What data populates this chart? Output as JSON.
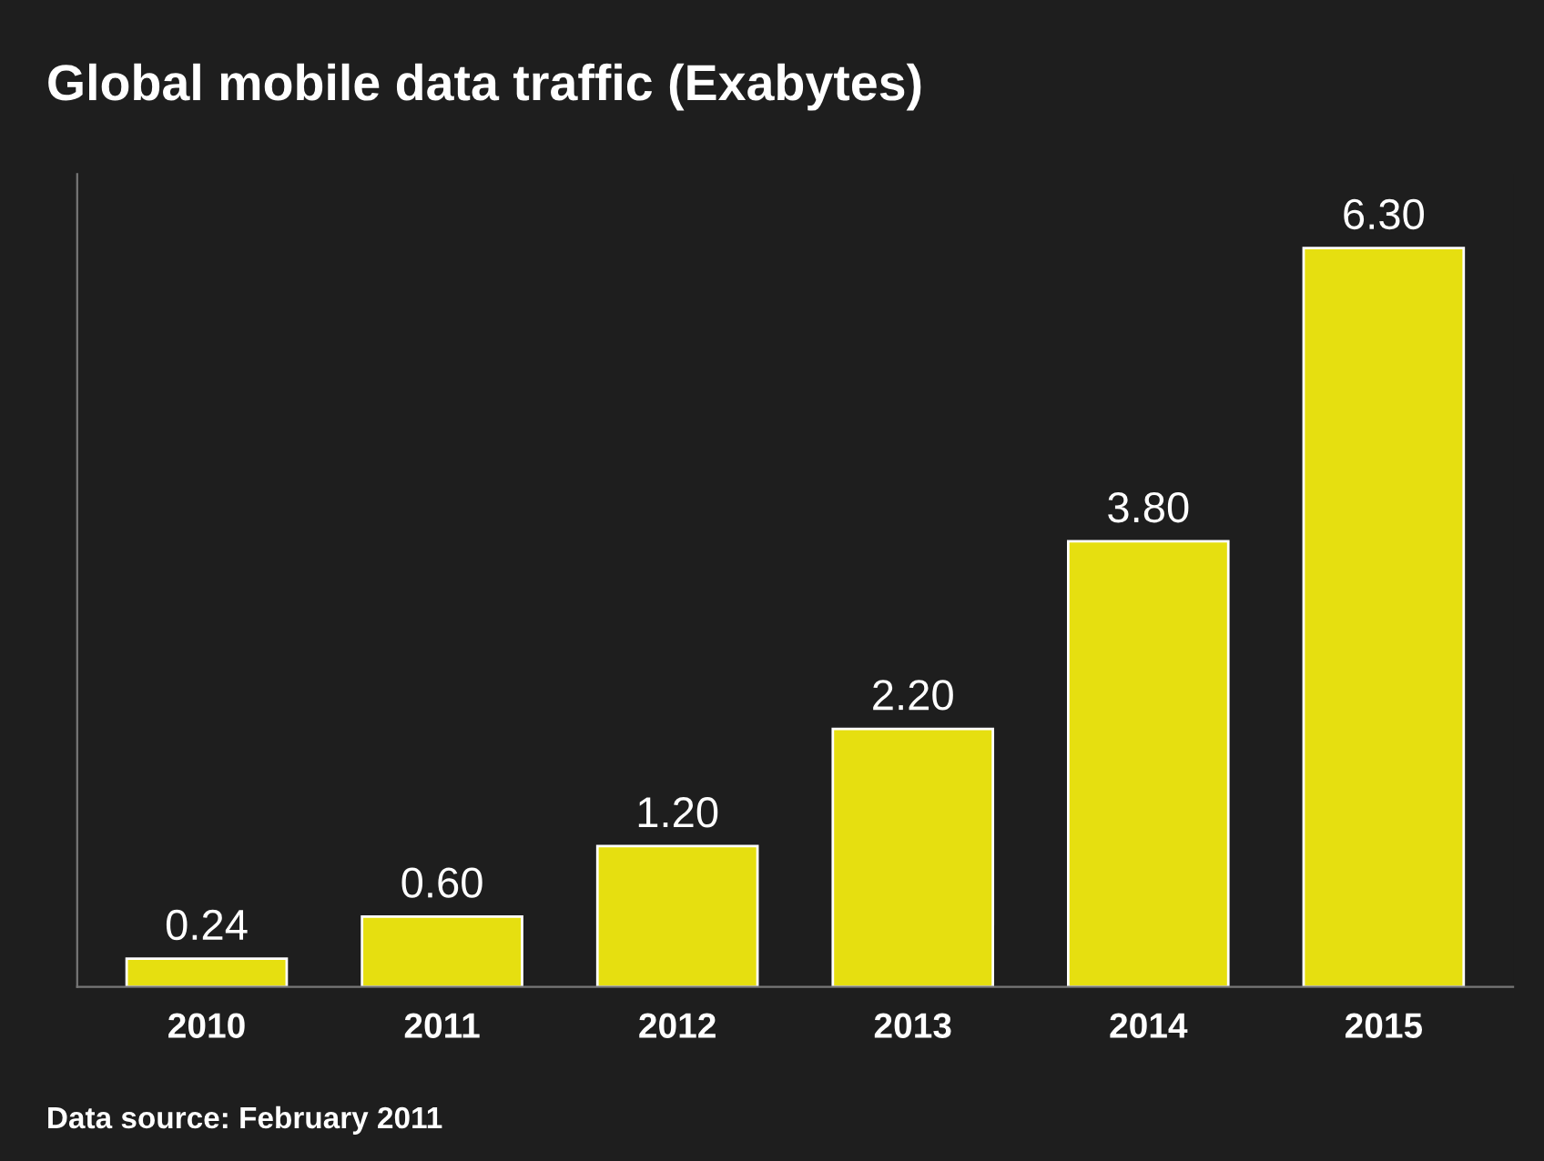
{
  "chart_data": {
    "type": "bar",
    "title": "Global mobile data traffic (Exabytes)",
    "categories": [
      "2010",
      "2011",
      "2012",
      "2013",
      "2014",
      "2015"
    ],
    "values": [
      0.24,
      0.6,
      1.2,
      2.2,
      3.8,
      6.3
    ],
    "value_labels": [
      "0.24",
      "0.60",
      "1.20",
      "2.20",
      "3.80",
      "6.30"
    ],
    "color": "#e6df10",
    "annotations": [
      "Data source: February 2011"
    ],
    "grid": false,
    "legend": false
  }
}
